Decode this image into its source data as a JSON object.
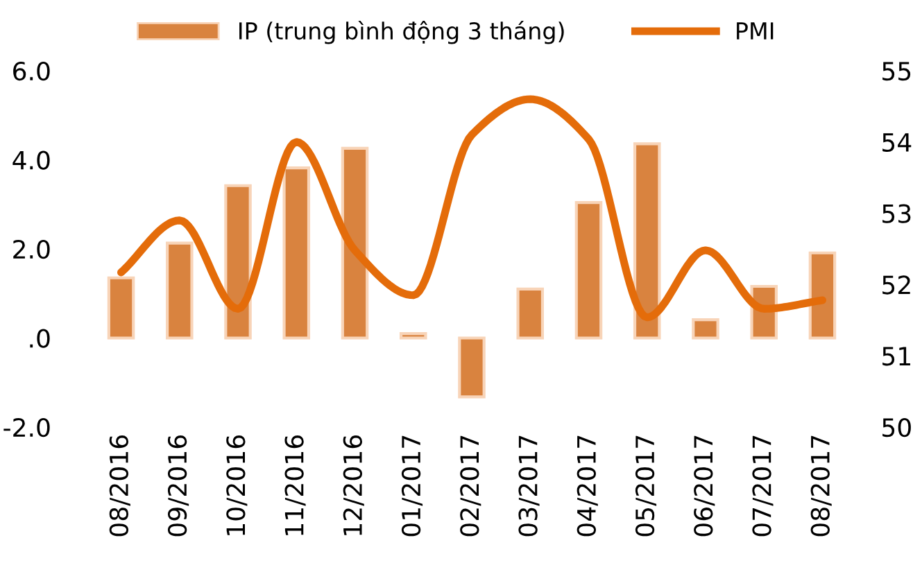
{
  "chart_data": {
    "type": "bar",
    "categories": [
      "08/2016",
      "09/2016",
      "10/2016",
      "11/2016",
      "12/2016",
      "01/2017",
      "02/2017",
      "03/2017",
      "04/2017",
      "05/2017",
      "06/2017",
      "07/2017",
      "08/2017"
    ],
    "series": [
      {
        "name": "IP (trung bình động 3 tháng)",
        "color": "#d9833f",
        "values": [
          1.35,
          2.13,
          3.42,
          3.82,
          4.26,
          0.1,
          -1.32,
          1.1,
          3.04,
          4.36,
          0.41,
          1.16,
          1.91
        ]
      },
      {
        "name": "PMI",
        "type": "line",
        "axis": "y2",
        "color": "#e46c0a",
        "values": [
          52.17,
          52.9,
          51.66,
          54.0,
          52.48,
          51.85,
          54.1,
          54.6,
          54.04,
          51.54,
          52.48,
          51.66,
          51.78
        ]
      }
    ],
    "ylim": [
      -2,
      6
    ],
    "yticks": [
      {
        "value": 6,
        "label": "6.0"
      },
      {
        "value": 4,
        "label": "4.0"
      },
      {
        "value": 2,
        "label": "2.0"
      },
      {
        "value": 0,
        "label": ".0"
      },
      {
        "value": -2,
        "label": "-2.0"
      }
    ],
    "y2lim": [
      50,
      55
    ],
    "y2ticks": [
      50,
      51,
      52,
      53,
      54,
      55
    ],
    "legend": "top",
    "grid": false,
    "marker": "none",
    "line_style": "solid"
  }
}
